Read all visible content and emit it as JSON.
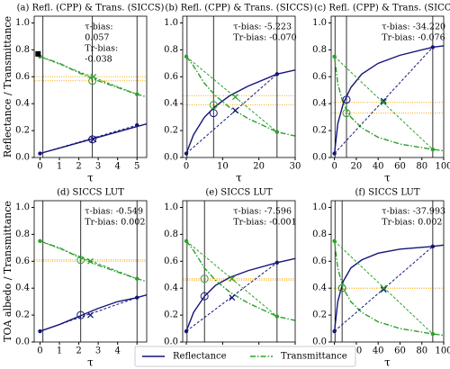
{
  "chart_data": [
    {
      "type": "line",
      "title": "(a) Refl. (CPP) & Trans. (SICCS)",
      "xlabel": "τ",
      "ylabel": "Reflectance / Transmittance",
      "xlim": [
        -0.3,
        5.5
      ],
      "xticks": [
        0,
        1,
        2,
        3,
        4,
        5
      ],
      "ylim": [
        0,
        1.05
      ],
      "yticks": [
        {
          "value": 0,
          "label": "0.0"
        },
        {
          "value": 0.2,
          "label": "0.2"
        },
        {
          "value": 0.4,
          "label": "0.4"
        },
        {
          "value": 0.6,
          "label": "0.6"
        },
        {
          "value": 0.8,
          "label": "0.8"
        },
        {
          "value": 1.0,
          "label": "1.0"
        }
      ],
      "annotations": [
        "τ-bias:",
        "0.057",
        "Tr-bias:",
        "-0.038"
      ],
      "series": [
        {
          "name": "Reflectance",
          "color": "#14147a",
          "style": "solid",
          "x": [
            0,
            1,
            2,
            3,
            4,
            5,
            5.5
          ],
          "values": [
            0.03,
            0.07,
            0.11,
            0.15,
            0.19,
            0.23,
            0.25
          ]
        },
        {
          "name": "Transmittance",
          "color": "#2ca02c",
          "style": "dashdot",
          "x": [
            0,
            1,
            2,
            3,
            4,
            5,
            5.5
          ],
          "values": [
            0.75,
            0.7,
            0.63,
            0.57,
            0.52,
            0.47,
            0.45
          ]
        },
        {
          "color": "#14147a",
          "style": "dashed",
          "x": [
            0,
            5
          ],
          "values": [
            0.03,
            0.24
          ]
        },
        {
          "color": "#2ca02c",
          "style": "dashed",
          "x": [
            0,
            5
          ],
          "values": [
            0.75,
            0.47
          ]
        }
      ],
      "vlines": [
        0.15,
        2.7,
        5
      ],
      "hlines": [
        0.57,
        0.6
      ],
      "hline_color": "#ffa500",
      "markers": [
        {
          "shape": "circle",
          "color": "#14147a",
          "x": 2.7,
          "y": 0.135
        },
        {
          "shape": "circle",
          "color": "#2ca02c",
          "x": 2.7,
          "y": 0.57
        },
        {
          "shape": "cross",
          "color": "#14147a",
          "x": 2.75,
          "y": 0.135
        },
        {
          "shape": "cross",
          "color": "#2ca02c",
          "x": 2.75,
          "y": 0.6
        },
        {
          "shape": "dot",
          "color": "#14147a",
          "x": 0,
          "y": 0.03
        },
        {
          "shape": "dot",
          "color": "#14147a",
          "x": 5,
          "y": 0.24
        },
        {
          "shape": "dot",
          "color": "#2ca02c",
          "x": 0,
          "y": 0.75
        },
        {
          "shape": "dot",
          "color": "#2ca02c",
          "x": 5,
          "y": 0.47
        },
        {
          "shape": "square",
          "color": "#000000",
          "x": -0.1,
          "y": 0.77
        }
      ]
    },
    {
      "type": "line",
      "title": "(b) Refl. (CPP) & Trans. (SICCS)",
      "xlabel": "τ",
      "xlim": [
        -1,
        30
      ],
      "xticks": [
        0,
        10,
        20,
        30
      ],
      "ylim": [
        0,
        1.05
      ],
      "yticks": [
        {
          "value": 0,
          "label": "0.0"
        },
        {
          "value": 0.2,
          "label": "0.2"
        },
        {
          "value": 0.4,
          "label": "0.4"
        },
        {
          "value": 0.6,
          "label": "0.6"
        },
        {
          "value": 0.8,
          "label": "0.8"
        },
        {
          "value": 1.0,
          "label": "1.0"
        }
      ],
      "annotations": [
        "τ-bias: -5.223",
        "Tr-bias: -0.070"
      ],
      "series": [
        {
          "color": "#14147a",
          "style": "solid",
          "x": [
            0,
            2,
            5,
            8,
            12,
            17,
            25,
            30
          ],
          "values": [
            0.03,
            0.17,
            0.3,
            0.38,
            0.46,
            0.53,
            0.62,
            0.65
          ]
        },
        {
          "color": "#2ca02c",
          "style": "dashdot",
          "x": [
            0,
            2,
            5,
            8,
            12,
            17,
            25,
            30
          ],
          "values": [
            0.75,
            0.68,
            0.55,
            0.46,
            0.37,
            0.29,
            0.19,
            0.16
          ]
        },
        {
          "color": "#14147a",
          "style": "dashed",
          "x": [
            0,
            25
          ],
          "values": [
            0.03,
            0.62
          ]
        },
        {
          "color": "#2ca02c",
          "style": "dashed",
          "x": [
            0,
            25
          ],
          "values": [
            0.75,
            0.19
          ]
        }
      ],
      "vlines": [
        0.2,
        7.5,
        25
      ],
      "hlines": [
        0.39,
        0.46
      ],
      "hline_color": "#ffa500",
      "markers": [
        {
          "shape": "circle",
          "color": "#14147a",
          "x": 7.5,
          "y": 0.33
        },
        {
          "shape": "circle",
          "color": "#2ca02c",
          "x": 7.5,
          "y": 0.39
        },
        {
          "shape": "cross",
          "color": "#14147a",
          "x": 13.5,
          "y": 0.35
        },
        {
          "shape": "cross",
          "color": "#2ca02c",
          "x": 13.5,
          "y": 0.45
        },
        {
          "shape": "dot",
          "color": "#14147a",
          "x": 0,
          "y": 0.03
        },
        {
          "shape": "dot",
          "color": "#14147a",
          "x": 25,
          "y": 0.62
        },
        {
          "shape": "dot",
          "color": "#2ca02c",
          "x": 0,
          "y": 0.75
        },
        {
          "shape": "dot",
          "color": "#2ca02c",
          "x": 25,
          "y": 0.19
        }
      ]
    },
    {
      "type": "line",
      "title": "(c) Refl. (CPP) & Trans. (SICCS)",
      "xlabel": "τ",
      "xlim": [
        -3,
        100
      ],
      "xticks": [
        0,
        20,
        40,
        60,
        80,
        100
      ],
      "ylim": [
        0,
        1.05
      ],
      "yticks": [
        {
          "value": 0,
          "label": "0.0"
        },
        {
          "value": 0.2,
          "label": "0.2"
        },
        {
          "value": 0.4,
          "label": "0.4"
        },
        {
          "value": 0.6,
          "label": "0.6"
        },
        {
          "value": 0.8,
          "label": "0.8"
        },
        {
          "value": 1.0,
          "label": "1.0"
        }
      ],
      "annotations": [
        "τ-bias: -34.220",
        "Tr-bias: -0.076"
      ],
      "series": [
        {
          "color": "#14147a",
          "style": "solid",
          "x": [
            0,
            3,
            8,
            15,
            25,
            40,
            60,
            90,
            100
          ],
          "values": [
            0.03,
            0.25,
            0.4,
            0.52,
            0.62,
            0.7,
            0.76,
            0.82,
            0.83
          ]
        },
        {
          "color": "#2ca02c",
          "style": "dashdot",
          "x": [
            0,
            3,
            8,
            15,
            25,
            40,
            60,
            90,
            100
          ],
          "values": [
            0.75,
            0.55,
            0.4,
            0.3,
            0.22,
            0.15,
            0.1,
            0.06,
            0.05
          ]
        },
        {
          "color": "#14147a",
          "style": "dashed",
          "x": [
            0,
            90
          ],
          "values": [
            0.03,
            0.82
          ]
        },
        {
          "color": "#2ca02c",
          "style": "dashed",
          "x": [
            0,
            90
          ],
          "values": [
            0.75,
            0.06
          ]
        }
      ],
      "vlines": [
        0.5,
        11,
        90
      ],
      "hlines": [
        0.33,
        0.41
      ],
      "hline_color": "#ffa500",
      "markers": [
        {
          "shape": "circle",
          "color": "#14147a",
          "x": 11,
          "y": 0.43
        },
        {
          "shape": "circle",
          "color": "#2ca02c",
          "x": 11,
          "y": 0.33
        },
        {
          "shape": "cross",
          "color": "#14147a",
          "x": 45,
          "y": 0.42
        },
        {
          "shape": "cross",
          "color": "#2ca02c",
          "x": 45,
          "y": 0.41
        },
        {
          "shape": "dot",
          "color": "#14147a",
          "x": 0,
          "y": 0.03
        },
        {
          "shape": "dot",
          "color": "#14147a",
          "x": 90,
          "y": 0.82
        },
        {
          "shape": "dot",
          "color": "#2ca02c",
          "x": 0,
          "y": 0.75
        },
        {
          "shape": "dot",
          "color": "#2ca02c",
          "x": 90,
          "y": 0.06
        }
      ]
    },
    {
      "type": "line",
      "title": "(d) SICCS LUT",
      "xlabel": "τ",
      "ylabel": "TOA albedo / Transmittance",
      "xlim": [
        -0.3,
        5.5
      ],
      "xticks": [
        0,
        1,
        2,
        3,
        4,
        5
      ],
      "ylim": [
        0,
        1.05
      ],
      "yticks": [
        {
          "value": 0,
          "label": "0.0"
        },
        {
          "value": 0.2,
          "label": "0.2"
        },
        {
          "value": 0.4,
          "label": "0.4"
        },
        {
          "value": 0.6,
          "label": "0.6"
        },
        {
          "value": 0.8,
          "label": "0.8"
        },
        {
          "value": 1.0,
          "label": "1.0"
        }
      ],
      "annotations": [
        "τ-bias: -0.549",
        "Tr-bias: 0.002"
      ],
      "series": [
        {
          "color": "#14147a",
          "style": "solid",
          "x": [
            0,
            1,
            2,
            3,
            4,
            5,
            5.5
          ],
          "values": [
            0.08,
            0.13,
            0.19,
            0.25,
            0.3,
            0.33,
            0.35
          ]
        },
        {
          "color": "#2ca02c",
          "style": "dashdot",
          "x": [
            0,
            1,
            2,
            3,
            4,
            5,
            5.5
          ],
          "values": [
            0.75,
            0.7,
            0.63,
            0.57,
            0.52,
            0.47,
            0.45
          ]
        },
        {
          "color": "#14147a",
          "style": "dashed",
          "x": [
            0,
            5
          ],
          "values": [
            0.08,
            0.33
          ]
        },
        {
          "color": "#2ca02c",
          "style": "dashed",
          "x": [
            0,
            5
          ],
          "values": [
            0.75,
            0.47
          ]
        }
      ],
      "vlines": [
        0.15,
        2.1,
        5
      ],
      "hlines": [
        0.6,
        0.61
      ],
      "hline_color": "#ffa500",
      "markers": [
        {
          "shape": "circle",
          "color": "#14147a",
          "x": 2.1,
          "y": 0.2
        },
        {
          "shape": "circle",
          "color": "#2ca02c",
          "x": 2.1,
          "y": 0.61
        },
        {
          "shape": "cross",
          "color": "#14147a",
          "x": 2.6,
          "y": 0.2
        },
        {
          "shape": "cross",
          "color": "#2ca02c",
          "x": 2.6,
          "y": 0.6
        },
        {
          "shape": "dot",
          "color": "#14147a",
          "x": 0,
          "y": 0.08
        },
        {
          "shape": "dot",
          "color": "#14147a",
          "x": 5,
          "y": 0.33
        },
        {
          "shape": "dot",
          "color": "#2ca02c",
          "x": 0,
          "y": 0.75
        },
        {
          "shape": "dot",
          "color": "#2ca02c",
          "x": 5,
          "y": 0.47
        }
      ]
    },
    {
      "type": "line",
      "title": "(e) SICCS LUT",
      "xlabel": "τ",
      "xlim": [
        -1,
        30
      ],
      "xticks": [
        0,
        10,
        20,
        30
      ],
      "ylim": [
        0,
        1.05
      ],
      "yticks": [
        {
          "value": 0,
          "label": "0.0"
        },
        {
          "value": 0.2,
          "label": "0.2"
        },
        {
          "value": 0.4,
          "label": "0.4"
        },
        {
          "value": 0.6,
          "label": "0.6"
        },
        {
          "value": 0.8,
          "label": "0.8"
        },
        {
          "value": 1.0,
          "label": "1.0"
        }
      ],
      "annotations": [
        "τ-bias: -7.596",
        "Tr-bias: -0.001"
      ],
      "series": [
        {
          "color": "#14147a",
          "style": "solid",
          "x": [
            0,
            2,
            5,
            8,
            12,
            17,
            25,
            30
          ],
          "values": [
            0.08,
            0.22,
            0.34,
            0.42,
            0.48,
            0.53,
            0.59,
            0.62
          ]
        },
        {
          "color": "#2ca02c",
          "style": "dashdot",
          "x": [
            0,
            2,
            5,
            8,
            12,
            17,
            25,
            30
          ],
          "values": [
            0.75,
            0.68,
            0.55,
            0.46,
            0.37,
            0.29,
            0.19,
            0.16
          ]
        },
        {
          "color": "#14147a",
          "style": "dashed",
          "x": [
            0,
            25
          ],
          "values": [
            0.08,
            0.59
          ]
        },
        {
          "color": "#2ca02c",
          "style": "dashed",
          "x": [
            0,
            25
          ],
          "values": [
            0.75,
            0.19
          ]
        }
      ],
      "vlines": [
        0.2,
        5,
        25
      ],
      "hlines": [
        0.46,
        0.47
      ],
      "hline_color": "#ffa500",
      "markers": [
        {
          "shape": "circle",
          "color": "#14147a",
          "x": 5,
          "y": 0.34
        },
        {
          "shape": "circle",
          "color": "#2ca02c",
          "x": 5,
          "y": 0.47
        },
        {
          "shape": "cross",
          "color": "#14147a",
          "x": 12.6,
          "y": 0.33
        },
        {
          "shape": "cross",
          "color": "#2ca02c",
          "x": 12.6,
          "y": 0.47
        },
        {
          "shape": "dot",
          "color": "#14147a",
          "x": 0,
          "y": 0.08
        },
        {
          "shape": "dot",
          "color": "#14147a",
          "x": 25,
          "y": 0.59
        },
        {
          "shape": "dot",
          "color": "#2ca02c",
          "x": 0,
          "y": 0.75
        },
        {
          "shape": "dot",
          "color": "#2ca02c",
          "x": 25,
          "y": 0.19
        }
      ]
    },
    {
      "type": "line",
      "title": "(f) SICCS LUT",
      "xlabel": "τ",
      "xlim": [
        -3,
        100
      ],
      "xticks": [
        0,
        20,
        40,
        60,
        80,
        100
      ],
      "ylim": [
        0,
        1.05
      ],
      "yticks": [
        {
          "value": 0,
          "label": "0.0"
        },
        {
          "value": 0.2,
          "label": "0.2"
        },
        {
          "value": 0.4,
          "label": "0.4"
        },
        {
          "value": 0.6,
          "label": "0.6"
        },
        {
          "value": 0.8,
          "label": "0.8"
        },
        {
          "value": 1.0,
          "label": "1.0"
        }
      ],
      "annotations": [
        "τ-bias: -37.993",
        "Tr-bias: 0.002"
      ],
      "series": [
        {
          "color": "#14147a",
          "style": "solid",
          "x": [
            0,
            3,
            8,
            15,
            25,
            40,
            60,
            90,
            100
          ],
          "values": [
            0.08,
            0.3,
            0.45,
            0.55,
            0.61,
            0.66,
            0.69,
            0.71,
            0.72
          ]
        },
        {
          "color": "#2ca02c",
          "style": "dashdot",
          "x": [
            0,
            3,
            8,
            15,
            25,
            40,
            60,
            90,
            100
          ],
          "values": [
            0.75,
            0.55,
            0.4,
            0.3,
            0.22,
            0.15,
            0.1,
            0.06,
            0.05
          ]
        },
        {
          "color": "#14147a",
          "style": "dashed",
          "x": [
            0,
            90
          ],
          "values": [
            0.08,
            0.71
          ]
        },
        {
          "color": "#2ca02c",
          "style": "dashed",
          "x": [
            0,
            90
          ],
          "values": [
            0.75,
            0.06
          ]
        }
      ],
      "vlines": [
        0.5,
        7,
        90
      ],
      "hlines": [
        0.4,
        0.4
      ],
      "hline_color": "#ffa500",
      "markers": [
        {
          "shape": "circle",
          "color": "#14147a",
          "x": 7,
          "y": 0.4
        },
        {
          "shape": "circle",
          "color": "#2ca02c",
          "x": 7,
          "y": 0.4
        },
        {
          "shape": "cross",
          "color": "#14147a",
          "x": 45,
          "y": 0.39
        },
        {
          "shape": "cross",
          "color": "#2ca02c",
          "x": 45,
          "y": 0.4
        },
        {
          "shape": "dot",
          "color": "#14147a",
          "x": 0,
          "y": 0.08
        },
        {
          "shape": "dot",
          "color": "#14147a",
          "x": 90,
          "y": 0.71
        },
        {
          "shape": "dot",
          "color": "#2ca02c",
          "x": 0,
          "y": 0.75
        },
        {
          "shape": "dot",
          "color": "#2ca02c",
          "x": 90,
          "y": 0.06
        }
      ]
    }
  ]
}
